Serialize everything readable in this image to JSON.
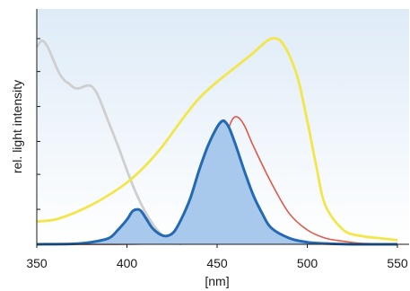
{
  "chart_data": {
    "type": "line",
    "xlabel": "[nm]",
    "ylabel": "rel. light intensity",
    "xlim": [
      350,
      550
    ],
    "ylim": [
      0,
      1
    ],
    "xticks": [
      350,
      400,
      450,
      500,
      550
    ],
    "xtick_labels": [
      "350",
      "400",
      "450",
      "500",
      "550"
    ],
    "yticks": [
      0.17,
      0.34,
      0.5,
      0.67,
      0.84,
      1.0
    ],
    "grid": false,
    "legend": "none",
    "background": "#deebf7",
    "series": [
      {
        "color": "#cfcfcf",
        "x": [
          350,
          353,
          356,
          359,
          362,
          365,
          368,
          371,
          374,
          377,
          380,
          383,
          386,
          390,
          395,
          400,
          405,
          410,
          415,
          420,
          425,
          430
        ],
        "y": [
          0.96,
          0.99,
          0.96,
          0.9,
          0.84,
          0.8,
          0.78,
          0.76,
          0.76,
          0.77,
          0.77,
          0.74,
          0.68,
          0.59,
          0.48,
          0.36,
          0.25,
          0.16,
          0.09,
          0.04,
          0.015,
          0.0
        ]
      },
      {
        "color": "#f2e64a",
        "x": [
          350,
          360,
          370,
          380,
          390,
          400,
          410,
          420,
          430,
          440,
          450,
          460,
          470,
          475,
          480,
          485,
          490,
          495,
          500,
          505,
          510,
          520,
          530,
          540,
          550
        ],
        "y": [
          0.11,
          0.12,
          0.15,
          0.19,
          0.24,
          0.3,
          0.38,
          0.48,
          0.6,
          0.71,
          0.79,
          0.86,
          0.93,
          0.97,
          1.0,
          0.99,
          0.92,
          0.8,
          0.6,
          0.38,
          0.19,
          0.07,
          0.04,
          0.03,
          0.02
        ]
      },
      {
        "color": "#e2584a",
        "x": [
          350,
          400,
          420,
          430,
          435,
          440,
          445,
          450,
          455,
          458,
          461,
          465,
          470,
          480,
          490,
          500,
          510,
          520,
          530,
          550
        ],
        "y": [
          0.0,
          0.0,
          0.005,
          0.015,
          0.04,
          0.08,
          0.18,
          0.34,
          0.52,
          0.6,
          0.62,
          0.58,
          0.48,
          0.3,
          0.15,
          0.07,
          0.03,
          0.015,
          0.005,
          0.0
        ]
      },
      {
        "color": "#2469b3",
        "fill": "#a8c9ec",
        "x": [
          350,
          370,
          380,
          390,
          395,
          400,
          403,
          406,
          408,
          411,
          414,
          418,
          422,
          426,
          430,
          435,
          440,
          445,
          450,
          453,
          455,
          457,
          460,
          465,
          470,
          475,
          480,
          490,
          500,
          510,
          520,
          530,
          550
        ],
        "y": [
          0.0,
          0.002,
          0.01,
          0.03,
          0.07,
          0.12,
          0.16,
          0.17,
          0.16,
          0.12,
          0.08,
          0.05,
          0.04,
          0.06,
          0.12,
          0.22,
          0.36,
          0.48,
          0.57,
          0.6,
          0.59,
          0.56,
          0.49,
          0.36,
          0.24,
          0.15,
          0.08,
          0.03,
          0.01,
          0.004,
          0.001,
          0.0,
          0.0
        ]
      }
    ]
  }
}
